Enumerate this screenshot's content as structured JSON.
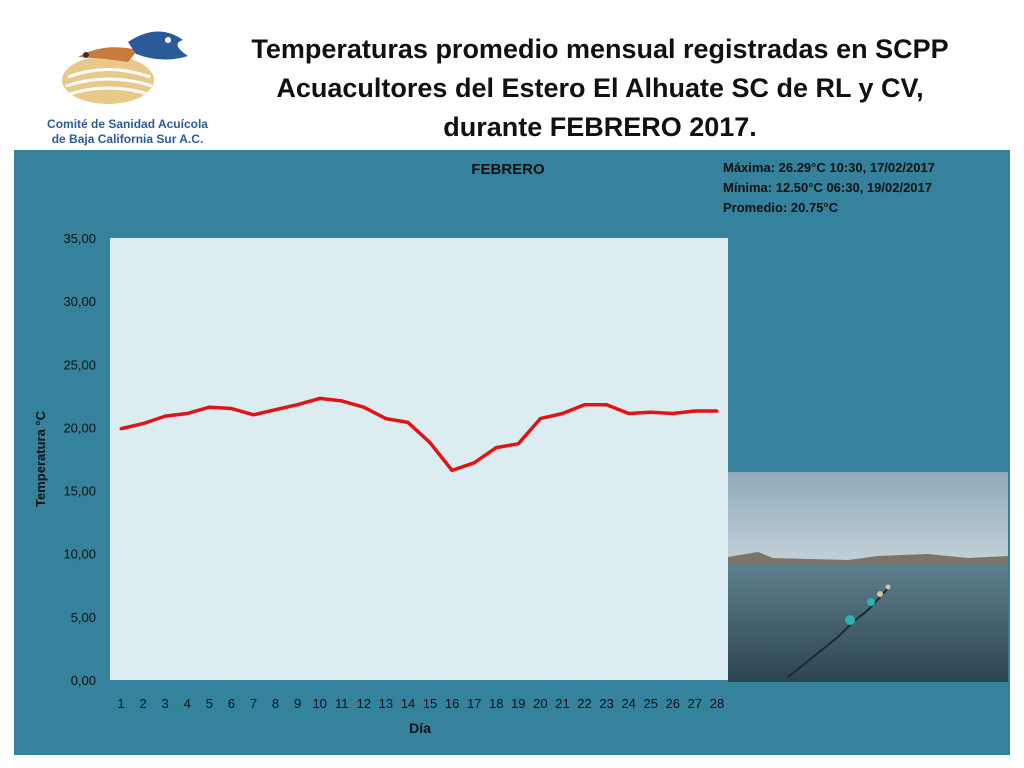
{
  "logo": {
    "name": "pelican-fish-logo",
    "lines": [
      "Comité de Sanidad Acuícola",
      "de Baja California Sur A.C."
    ]
  },
  "title_lines": [
    "Temperaturas promedio mensual registradas en SCPP",
    "Acuacultores del Estero El Alhuate SC de RL y CV,",
    "durante FEBRERO 2017."
  ],
  "stats": [
    "Máxima: 26.29°C  10:30, 17/02/2017",
    "Mínima:  12.50°C 06:30, 19/02/2017",
    "Promedio: 20.75°C"
  ],
  "photo": {
    "name": "estuary-photo"
  },
  "colors": {
    "panel": "#35829d",
    "plot_area": "#dcedf2",
    "line": "#e01414"
  },
  "chart_data": {
    "type": "line",
    "title": "FEBRERO",
    "xlabel": "Día",
    "ylabel": "Temperatura °C",
    "categories": [
      "1",
      "2",
      "3",
      "4",
      "5",
      "6",
      "7",
      "8",
      "9",
      "10",
      "11",
      "12",
      "13",
      "14",
      "15",
      "16",
      "17",
      "18",
      "19",
      "20",
      "21",
      "22",
      "23",
      "24",
      "25",
      "26",
      "27",
      "28"
    ],
    "values": [
      19.9,
      20.3,
      20.9,
      21.1,
      21.6,
      21.5,
      21.0,
      21.4,
      21.8,
      22.3,
      22.1,
      21.6,
      20.7,
      20.4,
      18.8,
      16.6,
      17.2,
      18.4,
      18.7,
      20.7,
      21.1,
      21.8,
      21.8,
      21.1,
      21.2,
      21.1,
      21.3,
      21.3
    ],
    "ylim": [
      0,
      35
    ],
    "yticks": [
      "0,00",
      "5,00",
      "10,00",
      "15,00",
      "20,00",
      "25,00",
      "30,00",
      "35,00"
    ],
    "ytick_values": [
      0,
      5,
      10,
      15,
      20,
      25,
      30,
      35
    ],
    "grid": false,
    "legend": "none"
  }
}
